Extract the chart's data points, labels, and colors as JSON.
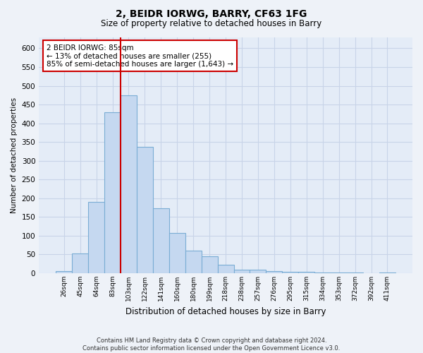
{
  "title_line1": "2, BEIDR IORWG, BARRY, CF63 1FG",
  "title_line2": "Size of property relative to detached houses in Barry",
  "xlabel": "Distribution of detached houses by size in Barry",
  "ylabel": "Number of detached properties",
  "categories": [
    "26sqm",
    "45sqm",
    "64sqm",
    "83sqm",
    "103sqm",
    "122sqm",
    "141sqm",
    "160sqm",
    "180sqm",
    "199sqm",
    "218sqm",
    "238sqm",
    "257sqm",
    "276sqm",
    "295sqm",
    "315sqm",
    "334sqm",
    "353sqm",
    "372sqm",
    "392sqm",
    "411sqm"
  ],
  "values": [
    5,
    52,
    190,
    430,
    475,
    338,
    173,
    108,
    60,
    45,
    22,
    10,
    10,
    6,
    4,
    4,
    2,
    1,
    1,
    0,
    1
  ],
  "bar_color": "#c5d8f0",
  "bar_edge_color": "#7aadd4",
  "vline_x_index": 3.5,
  "vline_color": "#cc0000",
  "annotation_text": "2 BEIDR IORWG: 85sqm\n← 13% of detached houses are smaller (255)\n85% of semi-detached houses are larger (1,643) →",
  "annotation_box_color": "#ffffff",
  "annotation_box_edge": "#cc0000",
  "ylim": [
    0,
    630
  ],
  "yticks": [
    0,
    50,
    100,
    150,
    200,
    250,
    300,
    350,
    400,
    450,
    500,
    550,
    600
  ],
  "footer_line1": "Contains HM Land Registry data © Crown copyright and database right 2024.",
  "footer_line2": "Contains public sector information licensed under the Open Government Licence v3.0.",
  "background_color": "#eef2f8",
  "plot_background": "#e4ecf7",
  "grid_color": "#c8d4e8"
}
